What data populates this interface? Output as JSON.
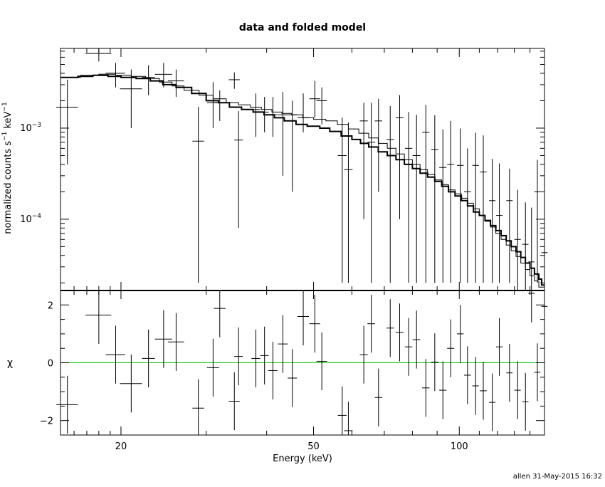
{
  "chart_data": {
    "type": "scatter",
    "title": "data and folded model",
    "credit": "allen 31-May-2015 16:32",
    "xlabel": "Energy (keV)",
    "x_scale": "log",
    "xlim": [
      15.0,
      150.0
    ],
    "x_ticks": [
      20,
      50,
      100
    ],
    "top_panel": {
      "ylabel_parts": [
        "normalized counts s",
        "−1",
        " keV",
        "−1"
      ],
      "y_scale": "log",
      "ylim": [
        1.65e-05,
        0.0075
      ],
      "y_ticks": [
        {
          "value": 0.001,
          "base": "10",
          "exp": "−3"
        },
        {
          "value": 0.0001,
          "base": "10",
          "exp": "−4"
        }
      ],
      "data": {
        "x": [
          15.5,
          18.0,
          19.5,
          21.0,
          22.8,
          24.5,
          26.0,
          28.9,
          31.0,
          32.0,
          34.3,
          35.0,
          38.0,
          39.6,
          41.2,
          43.2,
          45.2,
          47.6,
          50.3,
          52.0,
          57.3,
          59.0,
          63.5,
          65.8,
          68.1,
          72.0,
          75.3,
          78.6,
          81.6,
          85.3,
          89.0,
          92.5,
          96.0,
          100.5,
          104.0,
          108.1,
          112.1,
          117.0,
          121.0,
          127.0,
          132.0,
          137.0,
          141.0,
          145.0,
          150.0
        ],
        "xerr": [
          [
            0.8,
            0.8
          ],
          [
            1.1,
            1.1
          ],
          [
            0.9,
            0.9
          ],
          [
            1.1,
            1.1
          ],
          [
            0.7,
            0.7
          ],
          [
            1.0,
            1.0
          ],
          [
            1.0,
            1.0
          ],
          [
            0.8,
            0.8
          ],
          [
            0.9,
            0.9
          ],
          [
            0.9,
            0.9
          ],
          [
            0.9,
            0.9
          ],
          [
            0.7,
            0.7
          ],
          [
            0.8,
            0.8
          ],
          [
            0.8,
            0.8
          ],
          [
            0.9,
            0.9
          ],
          [
            1.0,
            1.0
          ],
          [
            1.0,
            1.0
          ],
          [
            1.3,
            1.3
          ],
          [
            1.3,
            1.3
          ],
          [
            1.3,
            1.3
          ],
          [
            1.2,
            1.2
          ],
          [
            1.2,
            1.2
          ],
          [
            1.2,
            1.2
          ],
          [
            1.2,
            1.2
          ],
          [
            1.2,
            1.2
          ],
          [
            1.3,
            1.3
          ],
          [
            1.4,
            1.4
          ],
          [
            1.4,
            1.4
          ],
          [
            1.5,
            1.5
          ],
          [
            1.5,
            1.5
          ],
          [
            1.5,
            1.5
          ],
          [
            1.6,
            1.6
          ],
          [
            1.6,
            1.6
          ],
          [
            1.6,
            1.6
          ],
          [
            1.7,
            1.7
          ],
          [
            1.7,
            1.7
          ],
          [
            1.8,
            1.8
          ],
          [
            1.8,
            1.8
          ],
          [
            1.9,
            1.9
          ],
          [
            1.9,
            1.9
          ],
          [
            2.0,
            2.0
          ],
          [
            2.0,
            2.0
          ],
          [
            2.1,
            2.1
          ],
          [
            2.1,
            2.1
          ],
          [
            2.2,
            2.2
          ]
        ],
        "y": [
          0.0017,
          0.0066,
          0.004,
          0.0027,
          0.0036,
          0.0039,
          0.0033,
          0.00072,
          0.0019,
          0.0019,
          0.0034,
          0.00074,
          0.0016,
          0.0015,
          0.0014,
          0.0014,
          0.0014,
          0.0013,
          0.0021,
          0.002,
          0.0005,
          0.00035,
          0.0012,
          0.0007,
          0.0012,
          0.00075,
          0.0013,
          0.0006,
          0.0005,
          0.0009,
          0.00058,
          0.00037,
          0.0004,
          0.00039,
          0.0002,
          0.00039,
          0.00033,
          0.00016,
          0.00011,
          0.00016,
          6e-05,
          5.3e-05,
          3.4e-05,
          0.0002,
          4.3e-05
        ],
        "yerr": [
          [
            0.0013,
            0.0017
          ],
          [
            0.0012,
            0.002
          ],
          [
            0.0012,
            0.0012
          ],
          [
            0.0017,
            0.0017
          ],
          [
            0.0013,
            0.0013
          ],
          [
            0.0011,
            0.0013
          ],
          [
            0.0011,
            0.0011
          ],
          [
            0.0007,
            0.001
          ],
          [
            0.0009,
            0.0013
          ],
          [
            0.0007,
            0.0007
          ],
          [
            0.0007,
            0.0007
          ],
          [
            0.00066,
            0.0008
          ],
          [
            0.0008,
            0.0008
          ],
          [
            0.0006,
            0.0007
          ],
          [
            0.0006,
            0.0008
          ],
          [
            0.0011,
            0.0011
          ],
          [
            0.0012,
            0.0006
          ],
          [
            0.0004,
            0.0011
          ],
          [
            0.0008,
            0.0012
          ],
          [
            0.0009,
            0.0008
          ],
          [
            0.00048,
            0.0008
          ],
          [
            0.00033,
            0.0008
          ],
          [
            0.0011,
            0.0007
          ],
          [
            0.00068,
            0.0012
          ],
          [
            0.001,
            0.0009
          ],
          [
            0.00073,
            0.001
          ],
          [
            0.0012,
            0.001
          ],
          [
            0.00058,
            0.0009
          ],
          [
            0.00048,
            0.0009
          ],
          [
            0.00088,
            0.0009
          ],
          [
            0.00056,
            0.0008
          ],
          [
            0.00035,
            0.0006
          ],
          [
            0.00038,
            0.0008
          ],
          [
            0.00037,
            0.0006
          ],
          [
            0.00018,
            0.0004
          ],
          [
            0.00037,
            0.0005
          ],
          [
            0.00031,
            0.0005
          ],
          [
            0.00014,
            0.0003
          ],
          [
            9e-05,
            0.0003
          ],
          [
            0.00014,
            0.0002
          ],
          [
            4.4e-05,
            0.00015
          ],
          [
            3.7e-05,
            0.0001
          ],
          [
            1.8e-05,
            0.0001
          ],
          [
            0.00018,
            0.00025
          ],
          [
            2.7e-05,
            0.0001
          ]
        ]
      },
      "model_series": [
        {
          "edges": [
            15.0,
            16.3,
            17.5,
            18.8,
            20.0,
            21.5,
            23.0,
            24.4,
            26.0,
            28.0,
            30.0,
            31.8,
            33.5,
            35.5,
            37.5,
            39.5,
            41.5,
            43.5,
            46.0,
            48.5,
            51.5,
            54.0,
            57.0,
            60.0,
            62.5,
            65.0,
            68.0,
            71.0,
            74.0,
            77.0,
            80.0,
            83.0,
            86.0,
            89.0,
            92.0,
            95.0,
            98.0,
            101.0,
            104.0,
            107.0,
            110.0,
            113.0,
            116.0,
            119.0,
            122.0,
            125.0,
            128.0,
            131.0,
            134.0,
            137.0,
            140.0,
            143.0,
            146.0,
            148.0,
            150.0
          ],
          "values": [
            0.0036,
            0.0037,
            0.0038,
            0.0037,
            0.0036,
            0.0035,
            0.0033,
            0.003,
            0.0028,
            0.0024,
            0.002,
            0.0019,
            0.0017,
            0.0016,
            0.0015,
            0.0014,
            0.0013,
            0.0012,
            0.0011,
            0.00105,
            0.001,
            0.00092,
            0.00082,
            0.00075,
            0.00068,
            0.00062,
            0.00055,
            0.0005,
            0.00045,
            0.0004,
            0.00036,
            0.00032,
            0.00029,
            0.00026,
            0.00023,
            0.0002,
            0.00018,
            0.00016,
            0.00014,
            0.00012,
            0.00011,
            9.7e-05,
            8.5e-05,
            7.5e-05,
            6.6e-05,
            5.8e-05,
            5e-05,
            4.4e-05,
            3.8e-05,
            3.3e-05,
            2.9e-05,
            2.5e-05,
            2.2e-05,
            1.9e-05
          ]
        },
        {
          "edges": [
            15.0,
            16.5,
            18.0,
            19.5,
            21.0,
            22.5,
            24.0,
            25.5,
            27.0,
            29.0,
            31.0,
            33.0,
            35.0,
            37.0,
            39.0,
            41.0,
            43.0,
            45.0,
            47.5,
            50.0,
            53.0,
            56.0,
            59.0,
            62.0,
            65.0,
            68.0,
            71.0,
            74.0,
            77.0,
            80.0,
            83.0,
            86.0,
            89.0,
            92.0,
            95.0,
            98.0,
            101.0,
            104.0,
            107.0,
            110.0,
            113.0,
            116.0,
            119.0,
            122.0,
            125.0,
            128.0,
            131.0,
            134.0,
            137.0,
            140.0,
            143.0,
            146.0,
            150.0
          ],
          "values": [
            0.0036,
            0.0038,
            0.0039,
            0.0038,
            0.0037,
            0.0035,
            0.0032,
            0.0029,
            0.0026,
            0.0023,
            0.0021,
            0.0019,
            0.0018,
            0.0017,
            0.0016,
            0.0015,
            0.00145,
            0.0014,
            0.0013,
            0.00125,
            0.0012,
            0.0011,
            0.00098,
            0.00088,
            0.00078,
            0.00068,
            0.0006,
            0.00052,
            0.00045,
            0.0004,
            0.00035,
            0.00031,
            0.00027,
            0.00024,
            0.00021,
            0.00019,
            0.00017,
            0.00015,
            0.00013,
            0.00011,
            9.5e-05,
            8.2e-05,
            7e-05,
            6e-05,
            5.2e-05,
            4.5e-05,
            3.9e-05,
            3.3e-05,
            2.8e-05,
            2.4e-05,
            2.1e-05,
            1.8e-05
          ]
        }
      ]
    },
    "bottom_panel": {
      "ylabel": "χ",
      "y_scale": "linear",
      "ylim": [
        -2.5,
        2.5
      ],
      "y_ticks": [
        2,
        0,
        -2
      ],
      "reference_line": {
        "y": 0,
        "color": "#00c800"
      },
      "data": {
        "x": [
          15.5,
          18.0,
          19.5,
          21.0,
          22.8,
          24.5,
          26.0,
          28.9,
          31.0,
          32.0,
          34.3,
          35.0,
          38.0,
          39.6,
          41.2,
          43.2,
          45.2,
          47.6,
          50.3,
          52.0,
          57.3,
          59.0,
          63.5,
          65.8,
          68.1,
          72.0,
          75.3,
          78.6,
          81.6,
          85.3,
          89.0,
          92.5,
          96.0,
          100.5,
          104.0,
          108.1,
          112.1,
          117.0,
          121.0,
          127.0,
          132.0,
          137.0,
          141.0,
          145.0,
          150.0
        ],
        "xerr": [
          [
            0.8,
            0.8
          ],
          [
            1.1,
            1.1
          ],
          [
            0.9,
            0.9
          ],
          [
            1.1,
            1.1
          ],
          [
            0.7,
            0.7
          ],
          [
            1.0,
            1.0
          ],
          [
            1.0,
            1.0
          ],
          [
            0.8,
            0.8
          ],
          [
            0.9,
            0.9
          ],
          [
            0.9,
            0.9
          ],
          [
            0.9,
            0.9
          ],
          [
            0.7,
            0.7
          ],
          [
            0.8,
            0.8
          ],
          [
            0.8,
            0.8
          ],
          [
            0.9,
            0.9
          ],
          [
            1.0,
            1.0
          ],
          [
            1.0,
            1.0
          ],
          [
            1.3,
            1.3
          ],
          [
            1.3,
            1.3
          ],
          [
            1.3,
            1.3
          ],
          [
            1.2,
            1.2
          ],
          [
            1.2,
            1.2
          ],
          [
            1.2,
            1.2
          ],
          [
            1.2,
            1.2
          ],
          [
            1.2,
            1.2
          ],
          [
            1.3,
            1.3
          ],
          [
            1.4,
            1.4
          ],
          [
            1.4,
            1.4
          ],
          [
            1.5,
            1.5
          ],
          [
            1.5,
            1.5
          ],
          [
            1.5,
            1.5
          ],
          [
            1.6,
            1.6
          ],
          [
            1.6,
            1.6
          ],
          [
            1.6,
            1.6
          ],
          [
            1.7,
            1.7
          ],
          [
            1.7,
            1.7
          ],
          [
            1.8,
            1.8
          ],
          [
            1.8,
            1.8
          ],
          [
            1.9,
            1.9
          ],
          [
            1.9,
            1.9
          ],
          [
            2.0,
            2.0
          ],
          [
            2.0,
            2.0
          ],
          [
            2.1,
            2.1
          ],
          [
            2.1,
            2.1
          ],
          [
            2.2,
            2.2
          ]
        ],
        "y": [
          -1.45,
          1.65,
          0.28,
          -0.72,
          0.15,
          0.82,
          0.72,
          -1.57,
          -0.17,
          1.88,
          -1.33,
          0.22,
          0.15,
          0.25,
          -0.27,
          0.65,
          -0.53,
          1.6,
          1.35,
          0.05,
          -1.82,
          -2.35,
          0.28,
          1.35,
          -1.2,
          1.2,
          1.05,
          0.55,
          0.8,
          -0.87,
          0.02,
          -0.95,
          0.5,
          1.0,
          -0.43,
          -0.8,
          -0.97,
          -1.37,
          0.55,
          -0.35,
          -0.95,
          -1.35,
          2.4,
          -0.33,
          1.95
        ],
        "yerr": [
          [
            1.0,
            1.0
          ],
          [
            1.0,
            1.0
          ],
          [
            1.0,
            1.0
          ],
          [
            1.0,
            1.0
          ],
          [
            1.0,
            1.0
          ],
          [
            1.0,
            1.0
          ],
          [
            1.0,
            1.0
          ],
          [
            1.0,
            1.0
          ],
          [
            1.0,
            1.0
          ],
          [
            1.0,
            1.0
          ],
          [
            1.0,
            1.0
          ],
          [
            1.0,
            1.0
          ],
          [
            1.0,
            1.0
          ],
          [
            1.0,
            1.0
          ],
          [
            1.0,
            1.0
          ],
          [
            1.0,
            1.0
          ],
          [
            1.0,
            1.0
          ],
          [
            1.0,
            1.0
          ],
          [
            1.0,
            1.0
          ],
          [
            1.0,
            1.0
          ],
          [
            1.0,
            1.0
          ],
          [
            1.0,
            1.0
          ],
          [
            1.0,
            1.0
          ],
          [
            1.0,
            1.0
          ],
          [
            1.0,
            1.0
          ],
          [
            1.0,
            1.0
          ],
          [
            1.0,
            1.0
          ],
          [
            1.0,
            1.0
          ],
          [
            1.0,
            1.0
          ],
          [
            1.0,
            1.0
          ],
          [
            1.0,
            1.0
          ],
          [
            1.0,
            1.0
          ],
          [
            1.0,
            1.0
          ],
          [
            1.0,
            1.0
          ],
          [
            1.0,
            1.0
          ],
          [
            1.0,
            1.0
          ],
          [
            1.0,
            1.0
          ],
          [
            1.0,
            1.0
          ],
          [
            1.0,
            1.0
          ],
          [
            1.0,
            1.0
          ],
          [
            1.0,
            1.0
          ],
          [
            1.0,
            1.0
          ],
          [
            1.0,
            1.0
          ],
          [
            1.0,
            1.0
          ],
          [
            1.0,
            1.0
          ]
        ]
      }
    }
  }
}
